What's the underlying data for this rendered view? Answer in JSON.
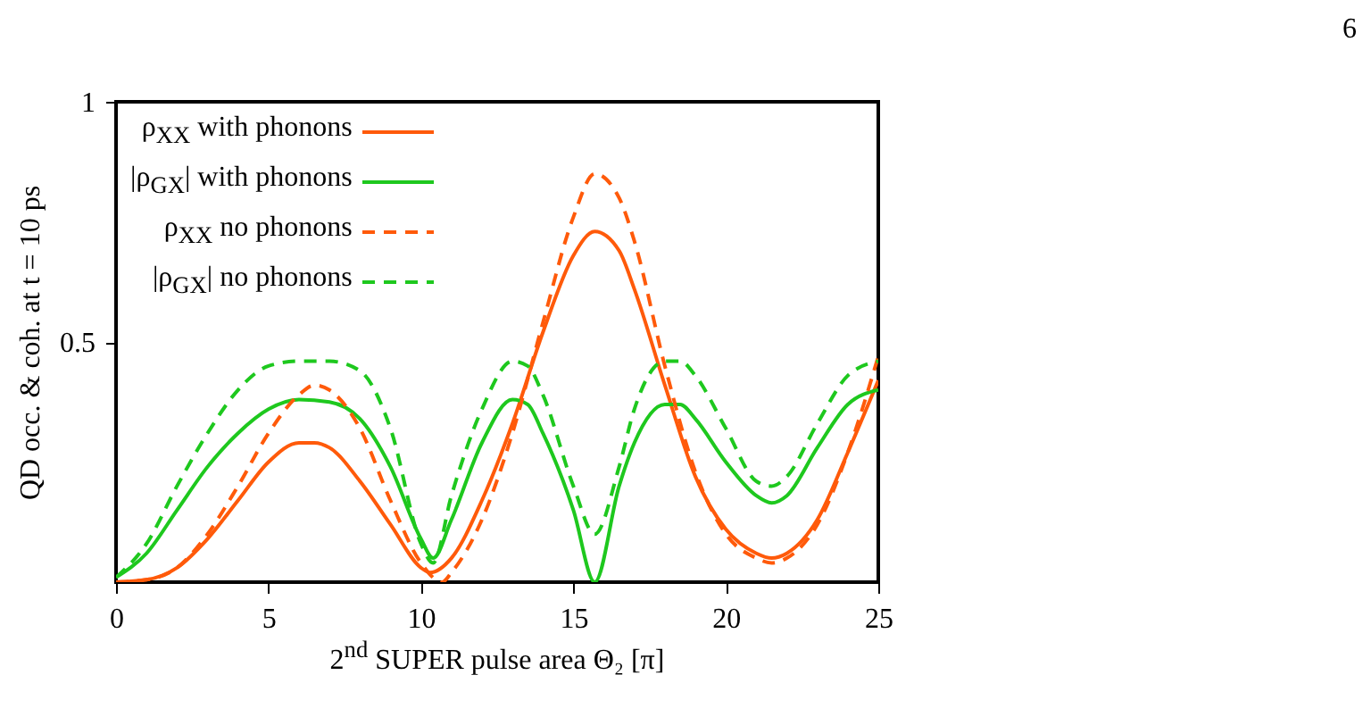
{
  "chart_data": {
    "type": "line",
    "xlabel": "2$^{nd}$ SUPER pulse area Θ₂ [π]",
    "ylabel": "QD occ. & coh. at t = 10 ps",
    "annotations": [
      "6"
    ],
    "xlim": [
      0,
      25
    ],
    "ylim": [
      0,
      1
    ],
    "xticks": [
      0,
      5,
      10,
      15,
      20,
      25
    ],
    "yticks": [
      0.5,
      1
    ],
    "grid": false,
    "legend": "top left",
    "marker": "none",
    "series": [
      {
        "name": "ρ$_{XX}$ with phonons",
        "color": "#ff5a0a",
        "line_style": "solid",
        "x": [
          0,
          1,
          2,
          3,
          4,
          5,
          6,
          6.5,
          7,
          8,
          9,
          10,
          10.3,
          11,
          12,
          13,
          14,
          15,
          15.7,
          16.5,
          17,
          18,
          19,
          20,
          21,
          21.5,
          22,
          23,
          24,
          25
        ],
        "values": [
          0,
          0.005,
          0.03,
          0.09,
          0.17,
          0.25,
          0.29,
          0.29,
          0.28,
          0.21,
          0.12,
          0.03,
          0.02,
          0.05,
          0.17,
          0.33,
          0.52,
          0.68,
          0.73,
          0.69,
          0.61,
          0.41,
          0.22,
          0.11,
          0.06,
          0.05,
          0.06,
          0.13,
          0.27,
          0.42
        ]
      },
      {
        "name": "|ρ$_{GX}$| with phonons",
        "color": "#1ec81e",
        "line_style": "solid",
        "x": [
          0,
          1,
          2,
          3,
          4,
          5,
          6,
          7,
          8,
          9,
          10,
          10.4,
          11,
          12,
          13,
          13.5,
          14,
          15,
          15.7,
          16.5,
          17,
          18,
          18.5,
          19,
          20,
          21,
          21.5,
          22,
          23,
          24,
          25
        ],
        "values": [
          0.01,
          0.06,
          0.15,
          0.24,
          0.31,
          0.36,
          0.38,
          0.375,
          0.34,
          0.24,
          0.09,
          0.05,
          0.13,
          0.29,
          0.38,
          0.37,
          0.31,
          0.15,
          0,
          0.2,
          0.29,
          0.37,
          0.37,
          0.34,
          0.25,
          0.18,
          0.165,
          0.18,
          0.28,
          0.37,
          0.4
        ]
      },
      {
        "name": "ρ$_{XX}$ no phonons",
        "color": "#ff5a0a",
        "line_style": "dashed",
        "x": [
          0,
          1,
          2,
          3,
          4,
          5,
          6,
          6.5,
          7,
          8,
          9,
          10,
          10.7,
          11,
          12,
          13,
          14,
          15,
          15.7,
          16.5,
          17,
          18,
          19,
          20,
          21,
          21.5,
          22,
          23,
          24,
          25
        ],
        "values": [
          0,
          0.005,
          0.03,
          0.1,
          0.2,
          0.31,
          0.39,
          0.41,
          0.4,
          0.32,
          0.17,
          0.04,
          0,
          0.02,
          0.13,
          0.31,
          0.54,
          0.76,
          0.85,
          0.8,
          0.71,
          0.45,
          0.23,
          0.1,
          0.05,
          0.04,
          0.05,
          0.12,
          0.27,
          0.47
        ]
      },
      {
        "name": "|ρ$_{GX}$| no phonons",
        "color": "#1ec81e",
        "line_style": "dashed",
        "x": [
          0,
          1,
          2,
          3,
          4,
          5,
          6,
          7,
          8,
          9,
          10,
          10.4,
          11,
          12,
          13,
          13.5,
          14,
          15,
          15.7,
          16.5,
          17,
          18,
          18.5,
          19,
          20,
          21,
          21.5,
          22,
          23,
          24,
          25
        ],
        "values": [
          0.01,
          0.08,
          0.2,
          0.31,
          0.4,
          0.45,
          0.46,
          0.46,
          0.44,
          0.32,
          0.08,
          0.04,
          0.18,
          0.36,
          0.46,
          0.45,
          0.39,
          0.2,
          0.1,
          0.24,
          0.36,
          0.46,
          0.46,
          0.43,
          0.32,
          0.21,
          0.2,
          0.22,
          0.33,
          0.43,
          0.46
        ]
      }
    ]
  }
}
